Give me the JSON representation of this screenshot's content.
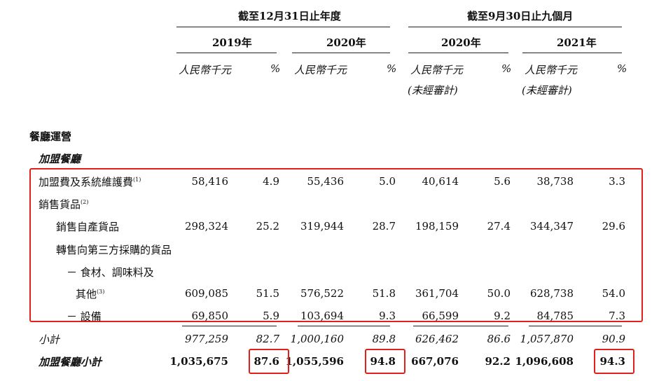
{
  "header": {
    "group1": "截至12月31日止年度",
    "group2": "截至9月30日止九個月",
    "years": [
      "2019年",
      "2020年",
      "2020年",
      "2021年"
    ],
    "unit_rmb": "人民幣千元",
    "unit_pct": "%",
    "unaudited": "(未經審計)"
  },
  "sections": {
    "section_title": "餐廳運營",
    "subsection_title": "加盟餐廳"
  },
  "rows": [
    {
      "label": "加盟費及系統維護費",
      "sup": "(1)",
      "values": [
        "58,416",
        "4.9",
        "55,436",
        "5.0",
        "40,614",
        "5.6",
        "38,738",
        "3.3"
      ]
    },
    {
      "label": "銷售貨品",
      "sup": "(2)",
      "values": []
    },
    {
      "label": "銷售自產貨品",
      "sup": "",
      "values": [
        "298,324",
        "25.2",
        "319,944",
        "28.7",
        "198,159",
        "27.4",
        "344,347",
        "29.6"
      ]
    },
    {
      "label": "轉售向第三方採購的貨品",
      "sup": "",
      "values": []
    },
    {
      "label": "－ 食材、調味料及",
      "sup": "",
      "values": []
    },
    {
      "label": "其他",
      "sup": "(3)",
      "values": [
        "609,085",
        "51.5",
        "576,522",
        "51.8",
        "361,704",
        "50.0",
        "628,738",
        "54.0"
      ]
    },
    {
      "label": "－ 設備",
      "sup": "",
      "values": [
        "69,850",
        "5.9",
        "103,694",
        "9.3",
        "66,599",
        "9.2",
        "84,785",
        "7.3"
      ]
    },
    {
      "label": "小計",
      "sup": "",
      "values": [
        "977,259",
        "82.7",
        "1,000,160",
        "89.8",
        "626,462",
        "86.6",
        "1,057,870",
        "90.9"
      ]
    },
    {
      "label": "加盟餐廳小計",
      "sup": "",
      "values": [
        "1,035,675",
        "87.6",
        "1,055,596",
        "94.8",
        "667,076",
        "92.2",
        "1,096,608",
        "94.3"
      ]
    }
  ]
}
